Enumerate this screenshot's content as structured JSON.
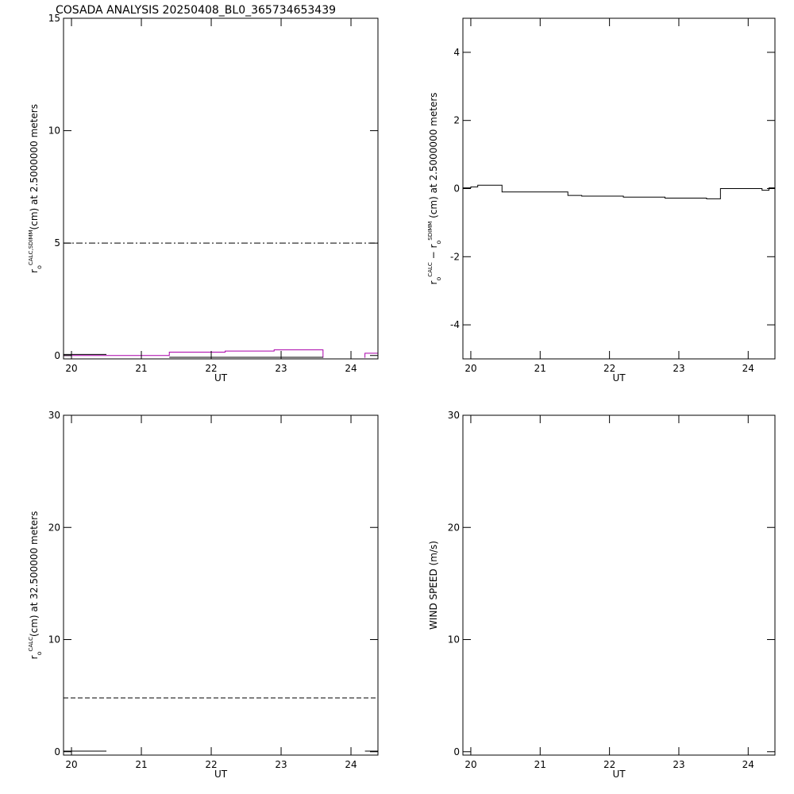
{
  "title": "COSADA ANALYSIS 20250408_BL0_365734653439",
  "chart_data": [
    {
      "type": "line",
      "xlabel": "UT",
      "ylabel": [
        {
          "text": "r"
        },
        {
          "text": "o",
          "shift": "sub"
        },
        {
          "text": "CALC,SDIMM",
          "shift": "super"
        },
        {
          "text": "(cm)  at  2.5000000 meters"
        }
      ],
      "xlim": [
        19.886,
        24.386
      ],
      "xticks": [
        20,
        21,
        22,
        23,
        24
      ],
      "ylim": [
        -0.15,
        15
      ],
      "yticks": [
        0,
        5,
        10,
        15
      ],
      "series": [
        {
          "color": "#000000",
          "style": "dashdot",
          "x": [
            19.886,
            24.386
          ],
          "values": [
            5,
            5
          ]
        },
        {
          "color": "#aa00aa",
          "style": "solid",
          "x": [
            19.886,
            21.4,
            21.4,
            22.2,
            22.2,
            22.9,
            22.9,
            23.6,
            23.6
          ],
          "values": [
            0,
            0,
            0.15,
            0.15,
            0.2,
            0.2,
            0.25,
            0.25,
            -0.1
          ]
        },
        {
          "color": "#aa00aa",
          "style": "solid",
          "x": [
            24.2,
            24.2,
            24.386
          ],
          "values": [
            -0.1,
            0.1,
            0.1
          ]
        },
        {
          "color": "#000000",
          "style": "solid",
          "x": [
            19.886,
            20.5
          ],
          "values": [
            0.05,
            0.05
          ]
        },
        {
          "color": "#000000",
          "style": "solid",
          "x": [
            21.4,
            23.6
          ],
          "values": [
            -0.08,
            -0.08
          ]
        }
      ]
    },
    {
      "type": "line",
      "xlabel": "UT",
      "ylabel": [
        {
          "text": "r"
        },
        {
          "text": "o",
          "shift": "sub"
        },
        {
          "text": "CALC",
          "shift": "super"
        },
        {
          "text": "  − r"
        },
        {
          "text": "o",
          "shift": "sub"
        },
        {
          "text": "SDIMM",
          "shift": "super"
        },
        {
          "text": " (cm) at 2.5000000 meters"
        }
      ],
      "xlim": [
        19.886,
        24.386
      ],
      "xticks": [
        20,
        21,
        22,
        23,
        24
      ],
      "ylim": [
        -5,
        5
      ],
      "yticks": [
        -4,
        -2,
        0,
        2,
        4
      ],
      "series": [
        {
          "color": "#000000",
          "style": "solid",
          "x": [
            19.886,
            20.0,
            20.0,
            20.1,
            20.1,
            20.45,
            20.45,
            21.4,
            21.4,
            21.6,
            21.6,
            22.2,
            22.2,
            22.8,
            22.8,
            23.4,
            23.4,
            23.6,
            23.6,
            24.2,
            24.2,
            24.3,
            24.3,
            24.386
          ],
          "values": [
            0.02,
            0.02,
            0.05,
            0.05,
            0.1,
            0.1,
            -0.1,
            -0.1,
            -0.2,
            -0.2,
            -0.22,
            -0.22,
            -0.25,
            -0.25,
            -0.28,
            -0.28,
            -0.3,
            -0.3,
            0,
            0,
            -0.05,
            -0.05,
            0.02,
            0.02
          ]
        }
      ]
    },
    {
      "type": "line",
      "xlabel": "UT",
      "ylabel": [
        {
          "text": "r"
        },
        {
          "text": "o",
          "shift": "sub"
        },
        {
          "text": "CALC",
          "shift": "super"
        },
        {
          "text": "(cm) at 32.500000 meters"
        }
      ],
      "xlim": [
        19.886,
        24.386
      ],
      "xticks": [
        20,
        21,
        22,
        23,
        24
      ],
      "ylim": [
        -0.3,
        30
      ],
      "yticks": [
        0,
        10,
        20,
        30
      ],
      "series": [
        {
          "color": "#000000",
          "style": "dashed",
          "x": [
            19.886,
            24.386
          ],
          "values": [
            4.8,
            4.8
          ]
        },
        {
          "color": "#000000",
          "style": "solid",
          "x": [
            19.886,
            20.5
          ],
          "values": [
            0.05,
            0.05
          ]
        },
        {
          "color": "#000000",
          "style": "solid",
          "x": [
            24.2,
            24.386
          ],
          "values": [
            0.05,
            0.05
          ]
        }
      ]
    },
    {
      "type": "line",
      "xlabel": "UT",
      "ylabel": [
        {
          "text": "WIND SPEED (m/s)"
        }
      ],
      "xlim": [
        19.886,
        24.386
      ],
      "xticks": [
        20,
        21,
        22,
        23,
        24
      ],
      "ylim": [
        -0.3,
        30
      ],
      "yticks": [
        0,
        10,
        20,
        30
      ],
      "series": []
    }
  ]
}
